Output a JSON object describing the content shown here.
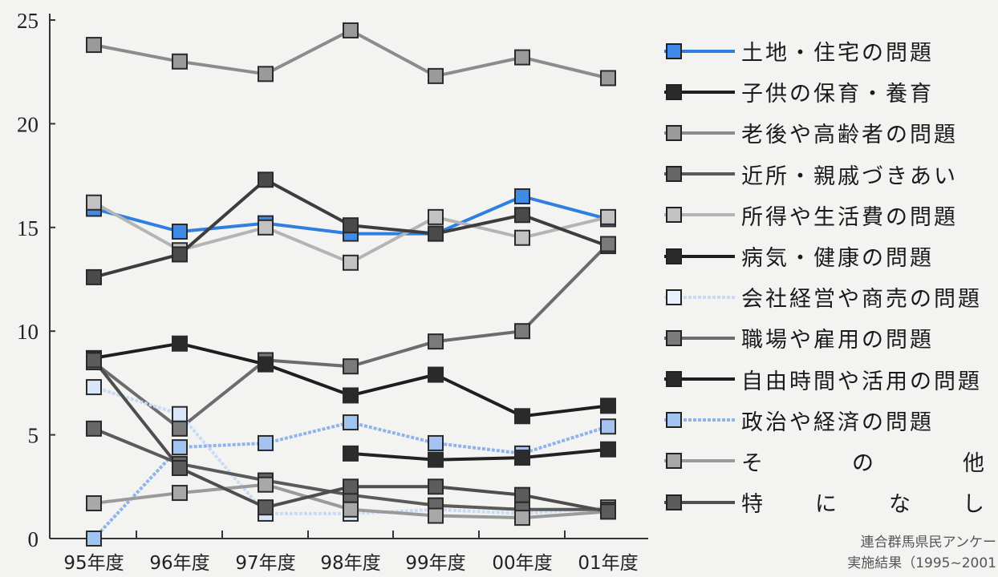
{
  "chart_data": {
    "type": "line",
    "x": [
      "95年度",
      "96年度",
      "97年度",
      "98年度",
      "99年度",
      "00年度",
      "01年度"
    ],
    "ylim": [
      0,
      25
    ],
    "yticks": [
      "0",
      "5",
      "10",
      "15",
      "20",
      "25"
    ],
    "grid": false,
    "legend_position": "right",
    "series": [
      {
        "name": "老後や高齢者の問題",
        "color": "#8c8c8c",
        "marker": "#9a9a9a",
        "dash": "",
        "values": [
          23.8,
          23.0,
          22.4,
          24.5,
          22.3,
          23.2,
          22.2
        ]
      },
      {
        "name": "土地・住宅の問題",
        "color": "#2f7fe0",
        "marker": "#3f8ce8",
        "dash": "",
        "values": [
          15.9,
          14.8,
          15.2,
          14.7,
          14.7,
          16.5,
          15.4
        ]
      },
      {
        "name": "所得や生活費の問題",
        "color": "#b4b4b4",
        "marker": "#c2c2c2",
        "dash": "",
        "values": [
          16.2,
          13.9,
          15.0,
          13.3,
          15.5,
          14.5,
          15.5
        ]
      },
      {
        "name": "子供の保育・養育",
        "color": "#3d3d3d",
        "marker": "#4a4a4a",
        "dash": "",
        "values": [
          12.6,
          13.7,
          17.3,
          15.1,
          14.7,
          15.6,
          14.1
        ]
      },
      {
        "name": "職場や雇用の問題",
        "color": "#6c6c6c",
        "marker": "#7a7a7a",
        "dash": "",
        "values": [
          8.5,
          5.3,
          8.6,
          8.3,
          9.5,
          10.0,
          14.2
        ]
      },
      {
        "name": "病気・健康の問題",
        "color": "#1e1e1e",
        "marker": "#2a2a2a",
        "dash": "",
        "values": [
          8.7,
          9.4,
          8.4,
          6.9,
          7.9,
          5.9,
          6.4
        ]
      },
      {
        "name": "会社経営や商売の問題",
        "color": "#c8dbf5",
        "marker": "#d8e6fa",
        "dash": "4,2",
        "values": [
          7.3,
          6.0,
          1.2,
          1.2,
          1.4,
          1.2,
          1.5
        ]
      },
      {
        "name": "政治や経済の問題",
        "color": "#8fb4ea",
        "marker": "#a3c3f0",
        "dash": "4,2",
        "values": [
          0.0,
          4.4,
          4.6,
          5.6,
          4.6,
          4.1,
          5.4
        ]
      },
      {
        "name": "自由時間や活用の問題",
        "color": "#222222",
        "marker": "#2c2c2c",
        "dash": "",
        "values": [
          null,
          null,
          null,
          4.1,
          3.8,
          3.9,
          4.3
        ]
      },
      {
        "name": "近所・親戚づきあい",
        "color": "#5a5a5a",
        "marker": "#666666",
        "dash": "",
        "values": [
          5.3,
          3.6,
          2.8,
          2.1,
          1.6,
          1.4,
          1.4
        ]
      },
      {
        "name": "その他",
        "color": "#9a9a9a",
        "marker": "#a8a8a8",
        "dash": "",
        "values": [
          1.7,
          2.2,
          2.6,
          1.4,
          1.1,
          1.0,
          1.3
        ]
      },
      {
        "name": "特になし",
        "color": "#4e4e4e",
        "marker": "#5c5c5c",
        "dash": "",
        "values": [
          8.6,
          3.4,
          1.5,
          2.5,
          2.5,
          2.1,
          1.3
        ]
      }
    ]
  },
  "legend": [
    {
      "label": "土地・住宅の問題",
      "line": "#2f7fe0",
      "box": "#3f8ce8",
      "dash": false,
      "spread": false
    },
    {
      "label": "子供の保育・養育",
      "line": "#1e1e1e",
      "box": "#2a2a2a",
      "dash": false,
      "spread": false
    },
    {
      "label": "老後や高齢者の問題",
      "line": "#8c8c8c",
      "box": "#9a9a9a",
      "dash": false,
      "spread": false
    },
    {
      "label": "近所・親戚づきあい",
      "line": "#5a5a5a",
      "box": "#666666",
      "dash": false,
      "spread": false
    },
    {
      "label": "所得や生活費の問題",
      "line": "#b4b4b4",
      "box": "#c2c2c2",
      "dash": false,
      "spread": false
    },
    {
      "label": "病気・健康の問題",
      "line": "#1e1e1e",
      "box": "#2a2a2a",
      "dash": false,
      "spread": false
    },
    {
      "label": "会社経営や商売の問題",
      "line": "#c8dbf5",
      "box": "#e8f0fc",
      "dash": true,
      "spread": false
    },
    {
      "label": "職場や雇用の問題",
      "line": "#6c6c6c",
      "box": "#7a7a7a",
      "dash": false,
      "spread": false
    },
    {
      "label": "自由時間や活用の問題",
      "line": "#1e1e1e",
      "box": "#2a2a2a",
      "dash": false,
      "spread": false
    },
    {
      "label": "政治や経済の問題",
      "line": "#8fb4ea",
      "box": "#a3c3f0",
      "dash": true,
      "spread": false
    },
    {
      "label": "そ の 他",
      "line": "#9a9a9a",
      "box": "#a8a8a8",
      "dash": false,
      "spread": true
    },
    {
      "label": "特 に な し",
      "line": "#4e4e4e",
      "box": "#5c5c5c",
      "dash": false,
      "spread": true
    }
  ],
  "source": {
    "line1": "連合群馬県民アンケー",
    "line2": "実施結果（1995~2001"
  }
}
